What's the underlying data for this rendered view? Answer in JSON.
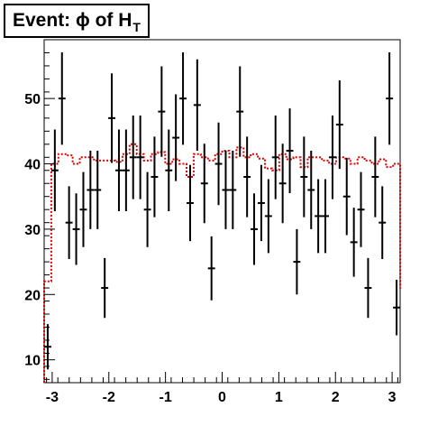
{
  "title": {
    "text": "Event: ϕ of H",
    "subscript": "T"
  },
  "chart_data": {
    "type": "histogram",
    "xlim": [
      -3.1416,
      3.1416
    ],
    "ylim": [
      6.5,
      59
    ],
    "x_ticks": [
      -3,
      -2,
      -1,
      0,
      1,
      2,
      3
    ],
    "x_tick_labels": [
      "-3",
      "-2",
      "-1",
      "0",
      "1",
      "2",
      "3"
    ],
    "y_ticks": [
      10,
      20,
      30,
      40,
      50
    ],
    "y_tick_labels": [
      "10",
      "20",
      "30",
      "40",
      "50"
    ],
    "grid": false,
    "colors": {
      "data": "#000000",
      "mc": "#dd0000"
    },
    "data_points": {
      "bin_width": 0.1257,
      "x": [
        -3.079,
        -2.953,
        -2.827,
        -2.702,
        -2.576,
        -2.45,
        -2.325,
        -2.199,
        -2.073,
        -1.948,
        -1.822,
        -1.696,
        -1.571,
        -1.445,
        -1.319,
        -1.194,
        -1.068,
        -0.942,
        -0.817,
        -0.691,
        -0.565,
        -0.44,
        -0.314,
        -0.188,
        -0.063,
        0.063,
        0.188,
        0.314,
        0.44,
        0.565,
        0.691,
        0.817,
        0.942,
        1.068,
        1.194,
        1.319,
        1.445,
        1.571,
        1.696,
        1.822,
        1.948,
        2.073,
        2.199,
        2.325,
        2.45,
        2.576,
        2.702,
        2.827,
        2.953,
        3.079
      ],
      "y": [
        12,
        39,
        50,
        31,
        30,
        33,
        36,
        36,
        21,
        47,
        39,
        39,
        41,
        41,
        33,
        38,
        48,
        39,
        44,
        50,
        34,
        49,
        37,
        24,
        40,
        36,
        36,
        48,
        38,
        30,
        34,
        32,
        41,
        37,
        42,
        25,
        38,
        36,
        32,
        32,
        41,
        46,
        35,
        28,
        33,
        21,
        38,
        31,
        50,
        18
      ]
    },
    "mc_histogram": {
      "edges_start": -3.1416,
      "bin_width": 0.1257,
      "values": [
        22,
        40,
        41.5,
        41.3,
        40,
        41,
        41,
        40.5,
        40.5,
        40.5,
        40.3,
        41.5,
        43,
        41.5,
        40.5,
        41.5,
        41.8,
        40,
        40.7,
        40,
        38,
        41.5,
        41,
        40.5,
        41.5,
        42,
        41,
        42.5,
        41,
        41.5,
        40.8,
        39.3,
        39,
        41.5,
        40.7,
        41,
        39.5,
        41,
        41,
        40.5,
        40,
        41,
        40.8,
        40,
        41,
        40.5,
        40,
        40.7,
        39.5,
        40,
        21
      ]
    }
  }
}
